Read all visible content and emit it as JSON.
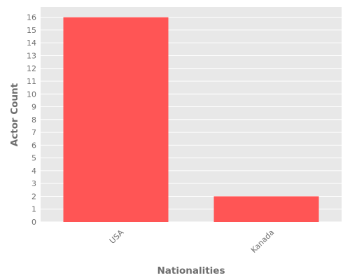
{
  "chart_data": {
    "type": "bar",
    "categories": [
      "USA",
      "Kanada"
    ],
    "values": [
      16,
      2
    ],
    "xlabel": "Nationalities",
    "ylabel": "Actor Count",
    "ylim": [
      0,
      16.8
    ],
    "yticks": [
      0,
      1,
      2,
      3,
      4,
      5,
      6,
      7,
      8,
      9,
      10,
      11,
      12,
      13,
      14,
      15,
      16
    ],
    "grid": true,
    "legend": "none",
    "colors": {
      "bar": "#ff5555",
      "panel_background": "#e8e8e8",
      "grid": "#ffffff",
      "text": "#6e6e6e"
    }
  }
}
